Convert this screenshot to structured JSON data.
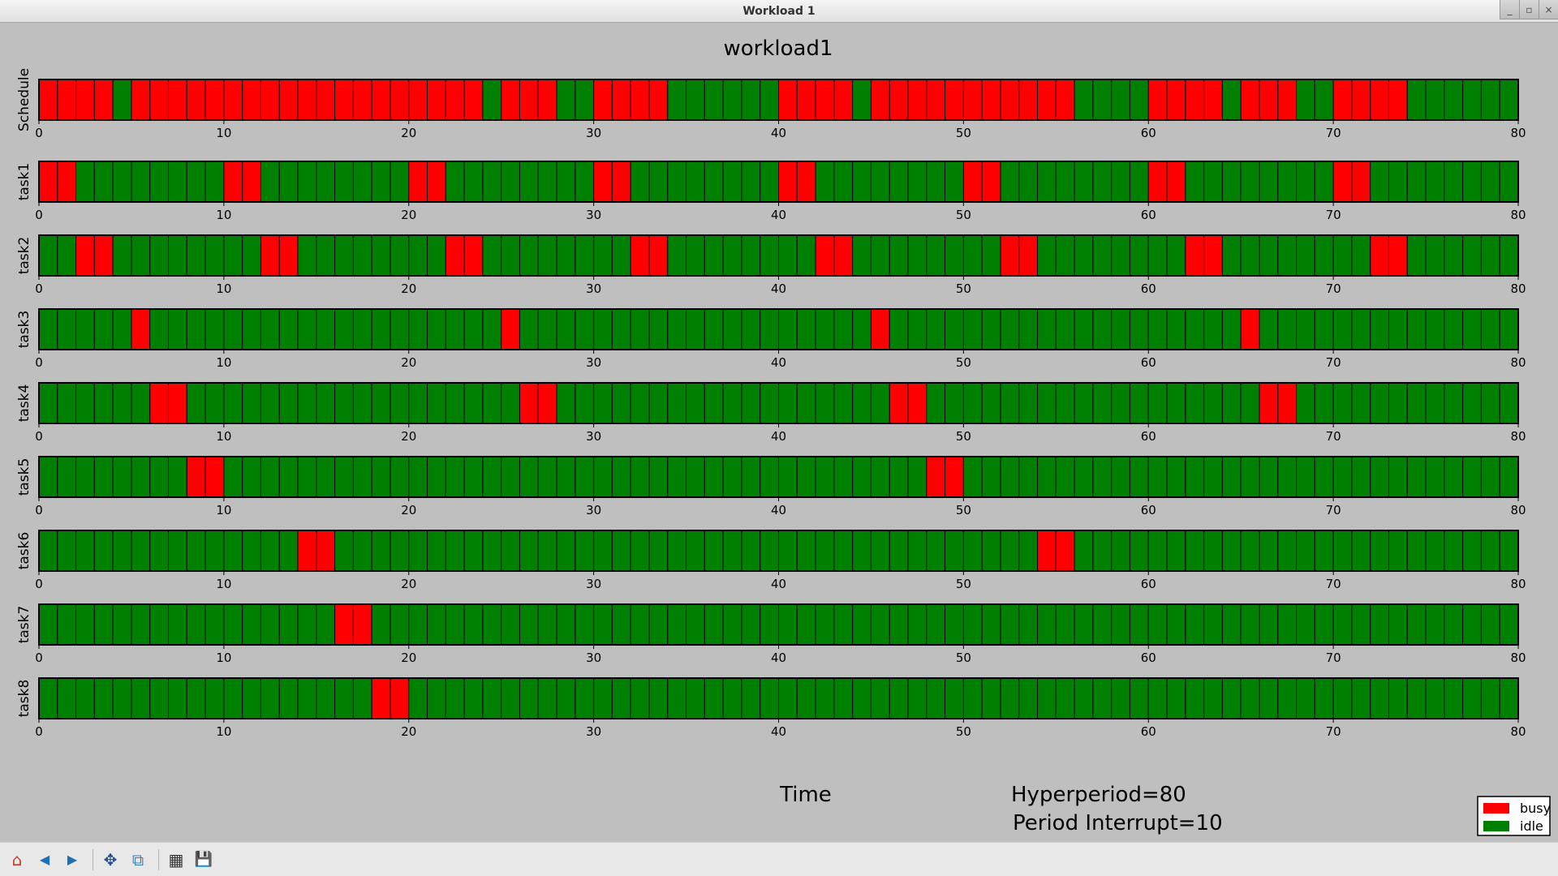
{
  "window": {
    "title": "Workload 1"
  },
  "window_controls": [
    "_",
    "▫",
    "×"
  ],
  "chart_data": {
    "type": "gantt",
    "title": "workload1",
    "xlabel": "Time",
    "xlim": [
      0,
      80
    ],
    "xticks": [
      0,
      10,
      20,
      30,
      40,
      50,
      60,
      70,
      80
    ],
    "annotations": [
      "Hyperperiod=80",
      "Period Interrupt=10"
    ],
    "legend": {
      "position": "bottom-right",
      "entries": [
        {
          "label": "busy",
          "color": "#ff0000"
        },
        {
          "label": "idle",
          "color": "#008000"
        }
      ]
    },
    "colors": {
      "busy": "#ff0000",
      "idle": "#008000"
    },
    "rows": [
      {
        "name": "Schedule",
        "busy_intervals": [
          [
            0,
            4
          ],
          [
            5,
            24
          ],
          [
            25,
            28
          ],
          [
            30,
            34
          ],
          [
            40,
            44
          ],
          [
            45,
            56
          ],
          [
            60,
            64
          ],
          [
            65,
            68
          ],
          [
            70,
            74
          ]
        ]
      },
      {
        "name": "task1",
        "busy_intervals": [
          [
            0,
            2
          ],
          [
            10,
            12
          ],
          [
            20,
            22
          ],
          [
            30,
            32
          ],
          [
            40,
            42
          ],
          [
            50,
            52
          ],
          [
            60,
            62
          ],
          [
            70,
            72
          ]
        ]
      },
      {
        "name": "task2",
        "busy_intervals": [
          [
            2,
            4
          ],
          [
            12,
            14
          ],
          [
            22,
            24
          ],
          [
            32,
            34
          ],
          [
            42,
            44
          ],
          [
            52,
            54
          ],
          [
            62,
            64
          ],
          [
            72,
            74
          ]
        ]
      },
      {
        "name": "task3",
        "busy_intervals": [
          [
            5,
            6
          ],
          [
            25,
            26
          ],
          [
            45,
            46
          ],
          [
            65,
            66
          ]
        ]
      },
      {
        "name": "task4",
        "busy_intervals": [
          [
            6,
            8
          ],
          [
            26,
            28
          ],
          [
            46,
            48
          ],
          [
            66,
            68
          ]
        ]
      },
      {
        "name": "task5",
        "busy_intervals": [
          [
            8,
            10
          ],
          [
            48,
            50
          ]
        ]
      },
      {
        "name": "task6",
        "busy_intervals": [
          [
            14,
            16
          ],
          [
            54,
            56
          ]
        ]
      },
      {
        "name": "task7",
        "busy_intervals": [
          [
            16,
            18
          ]
        ]
      },
      {
        "name": "task8",
        "busy_intervals": [
          [
            18,
            20
          ]
        ]
      }
    ]
  },
  "toolbar": {
    "items": [
      {
        "name": "home-button",
        "icon": "home-icon",
        "glyph": "⌂"
      },
      {
        "name": "back-button",
        "icon": "arrow-left-icon",
        "glyph": "◀"
      },
      {
        "name": "forward-button",
        "icon": "arrow-right-icon",
        "glyph": "▶"
      },
      {
        "name": "pan-button",
        "icon": "move-icon",
        "glyph": "✥"
      },
      {
        "name": "zoom-button",
        "icon": "zoom-rect-icon",
        "glyph": "⧉"
      },
      {
        "name": "configure-subplots-button",
        "icon": "subplots-icon",
        "glyph": "▦"
      },
      {
        "name": "save-button",
        "icon": "floppy-disk-icon",
        "glyph": "💾"
      }
    ]
  }
}
